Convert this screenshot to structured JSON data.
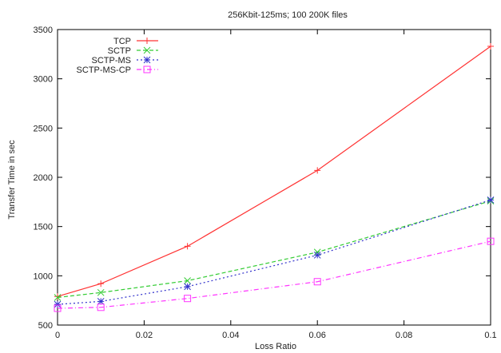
{
  "chart_data": {
    "type": "line",
    "title": "256Kbit-125ms; 100 200K files",
    "xlabel": "Loss Ratio",
    "ylabel": "Transfer Time in sec",
    "x": [
      0,
      0.01,
      0.03,
      0.06,
      0.1
    ],
    "xlim": [
      0,
      0.1
    ],
    "ylim": [
      500,
      3500
    ],
    "xticks": [
      "0",
      "0.02",
      "0.04",
      "0.06",
      "0.08",
      "0.1"
    ],
    "yticks": [
      "500",
      "1000",
      "1500",
      "2000",
      "2500",
      "3000",
      "3500"
    ],
    "grid": false,
    "legend_position": "top-left",
    "series": [
      {
        "name": "TCP",
        "values": [
          790,
          920,
          1300,
          2070,
          3330
        ],
        "color": "#ff3333",
        "dash": "solid",
        "marker": "plus"
      },
      {
        "name": "SCTP",
        "values": [
          780,
          830,
          950,
          1240,
          1760
        ],
        "color": "#33cc33",
        "dash": "dashed",
        "marker": "cross"
      },
      {
        "name": "SCTP-MS",
        "values": [
          710,
          740,
          890,
          1210,
          1770
        ],
        "color": "#3333cc",
        "dash": "dotted",
        "marker": "star"
      },
      {
        "name": "SCTP-MS-CP",
        "values": [
          670,
          680,
          770,
          940,
          1350
        ],
        "color": "#ff33ff",
        "dash": "dashdot",
        "marker": "square"
      }
    ]
  }
}
